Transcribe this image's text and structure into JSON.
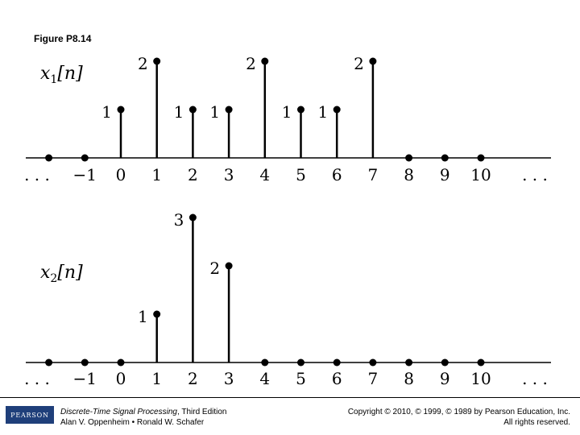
{
  "figure_title": "Figure P8.14",
  "chart_data": [
    {
      "type": "stem",
      "ylabel": "x1[n]",
      "ylabel_base": "x",
      "ylabel_sub": "1",
      "ylabel_arg": "[n]",
      "x": [
        -2,
        -1,
        0,
        1,
        2,
        3,
        4,
        5,
        6,
        7,
        8,
        9,
        10
      ],
      "values": [
        0,
        0,
        1,
        2,
        1,
        1,
        2,
        1,
        1,
        2,
        0,
        0,
        0
      ],
      "tick_labels": [
        "-1",
        "0",
        "1",
        "2",
        "3",
        "4",
        "5",
        "6",
        "7",
        "8",
        "9",
        "10"
      ],
      "left_ellipsis": ". . .",
      "right_ellipsis": ". . ."
    },
    {
      "type": "stem",
      "ylabel": "x2[n]",
      "ylabel_base": "x",
      "ylabel_sub": "2",
      "ylabel_arg": "[n]",
      "x": [
        -2,
        -1,
        0,
        1,
        2,
        3,
        4,
        5,
        6,
        7,
        8,
        9,
        10
      ],
      "values": [
        0,
        0,
        0,
        1,
        3,
        2,
        0,
        0,
        0,
        0,
        0,
        0,
        0
      ],
      "tick_labels": [
        "-1",
        "0",
        "1",
        "2",
        "3",
        "4",
        "5",
        "6",
        "7",
        "8",
        "9",
        "10"
      ],
      "left_ellipsis": ". . .",
      "right_ellipsis": ". . ."
    }
  ],
  "footer": {
    "logo": "PEARSON",
    "book_title": "Discrete-Time Signal Processing",
    "edition": ", Third Edition",
    "authors": "Alan V. Oppenheim • Ronald W. Schafer",
    "copyright": "Copyright © 2010, © 1999, © 1989 by Pearson Education, Inc.",
    "rights": "All rights reserved."
  }
}
